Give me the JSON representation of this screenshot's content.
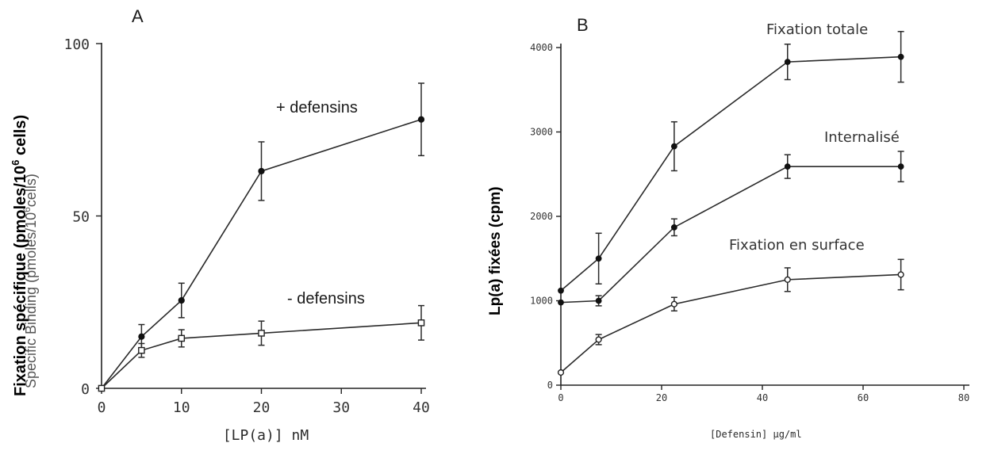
{
  "chart_data": [
    {
      "panel": "A",
      "type": "line",
      "ylabel": "Fixation spécifique (pmoles/10^6 cells)",
      "ylabel_underlying": "Specific Binding (pmoles/10^6 cells)",
      "xlabel": "[LP(a)]  nM",
      "xlim": [
        0,
        40
      ],
      "ylim": [
        0,
        100
      ],
      "x_ticks": [
        0,
        10,
        20,
        30,
        40
      ],
      "y_ticks": [
        0,
        50,
        100
      ],
      "grid": false,
      "series": [
        {
          "name": "+ defensins",
          "marker": "filled-circle",
          "x": [
            0,
            5,
            10,
            20,
            40
          ],
          "y": [
            0,
            15,
            25.5,
            63,
            78
          ],
          "yerr": [
            0,
            3.5,
            5,
            8.5,
            10.5
          ]
        },
        {
          "name": "- defensins",
          "marker": "open-square",
          "x": [
            0,
            5,
            10,
            20,
            40
          ],
          "y": [
            0,
            11,
            14.5,
            16,
            19
          ],
          "yerr": [
            0,
            2,
            2.5,
            3.5,
            5
          ]
        }
      ]
    },
    {
      "panel": "B",
      "type": "line",
      "ylabel": "Lp(a) fixées (cpm)",
      "xlabel": "[Defensin]  µg/ml",
      "xlim": [
        0,
        80
      ],
      "ylim": [
        0,
        4000
      ],
      "x_ticks": [
        "0",
        "20",
        "40",
        "60",
        "80"
      ],
      "y_ticks": [
        "0",
        "1000",
        "2000",
        "3000",
        "4000"
      ],
      "grid": false,
      "series": [
        {
          "name": "Fixation totale",
          "marker": "filled-circle",
          "x": [
            0,
            7.5,
            22.5,
            45,
            67.5
          ],
          "y": [
            1120,
            1500,
            2830,
            3830,
            3890
          ],
          "yerr": [
            0,
            300,
            290,
            210,
            300
          ]
        },
        {
          "name": "Internalisé",
          "marker": "filled-circle",
          "x": [
            0,
            7.5,
            22.5,
            45,
            67.5
          ],
          "y": [
            980,
            1000,
            1870,
            2590,
            2590
          ],
          "yerr": [
            0,
            60,
            100,
            140,
            180
          ]
        },
        {
          "name": "Fixation en surface",
          "marker": "open-circle",
          "x": [
            0,
            7.5,
            22.5,
            45,
            67.5
          ],
          "y": [
            150,
            540,
            960,
            1250,
            1310
          ],
          "yerr": [
            0,
            60,
            80,
            140,
            180
          ]
        }
      ]
    }
  ],
  "labels": {
    "panel_a": "A",
    "panel_b": "B",
    "a_xlabel": "[LP(a)]  nM",
    "a_ylabel": "Fixation spécifique (pmoles/10",
    "a_ylabel_sup": "6",
    "a_ylabel_end": " cells)",
    "a_ylabel_ghost": "Specific  Binding  (pmoles/10",
    "a_ylabel_ghost_sup": "6",
    "a_ylabel_ghost_end": "cells)",
    "a_series1": "+ defensins",
    "a_series2": "- defensins",
    "b_xlabel": "[Defensin]  µg/ml",
    "b_ylabel": "Lp(a) fixées (cpm)",
    "b_series1": "Fixation totale",
    "b_series2": "Internalisé",
    "b_series3": "Fixation en surface"
  }
}
